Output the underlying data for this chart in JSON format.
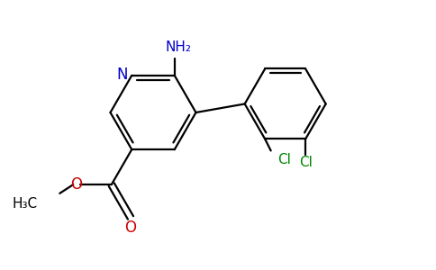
{
  "background_color": "#ffffff",
  "bond_color": "#000000",
  "N_color": "#0000cc",
  "O_color": "#cc0000",
  "Cl_color": "#008800",
  "NH2_color": "#0000cc",
  "line_width": 1.6,
  "figsize": [
    4.84,
    3.0
  ],
  "dpi": 100,
  "xlim": [
    0,
    9.68
  ],
  "ylim": [
    0,
    6.0
  ]
}
